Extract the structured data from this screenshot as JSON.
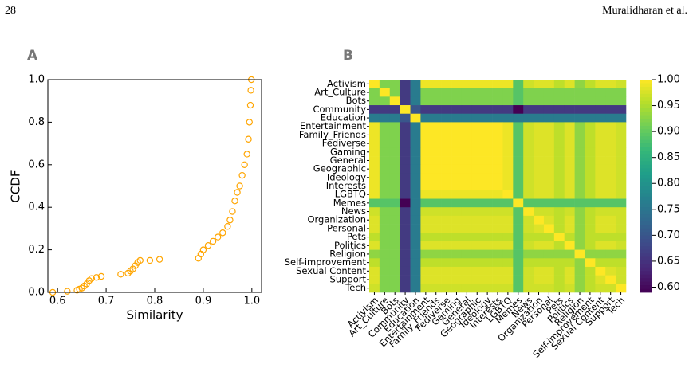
{
  "header": {
    "page": "28",
    "authors": "Muralidharan et al."
  },
  "chart_data": [
    {
      "type": "scatter",
      "panel": "A",
      "xlabel": "Similarity",
      "ylabel": "CCDF",
      "x": [
        0.59,
        0.62,
        0.64,
        0.645,
        0.65,
        0.655,
        0.66,
        0.665,
        0.67,
        0.68,
        0.69,
        0.73,
        0.745,
        0.75,
        0.755,
        0.76,
        0.765,
        0.77,
        0.79,
        0.81,
        0.89,
        0.895,
        0.9,
        0.91,
        0.92,
        0.93,
        0.94,
        0.95,
        0.955,
        0.96,
        0.965,
        0.97,
        0.975,
        0.98,
        0.985,
        0.99,
        0.993,
        0.995,
        0.997,
        0.998,
        0.999
      ],
      "series": [
        {
          "color": "#ffa500",
          "values": [
            0.0,
            0.005,
            0.01,
            0.015,
            0.02,
            0.03,
            0.04,
            0.055,
            0.065,
            0.07,
            0.075,
            0.085,
            0.09,
            0.1,
            0.11,
            0.125,
            0.14,
            0.15,
            0.15,
            0.155,
            0.16,
            0.18,
            0.2,
            0.22,
            0.24,
            0.26,
            0.28,
            0.31,
            0.34,
            0.38,
            0.43,
            0.47,
            0.5,
            0.55,
            0.6,
            0.65,
            0.72,
            0.8,
            0.88,
            0.95,
            1.0
          ]
        }
      ],
      "xlim": [
        0.58,
        1.02
      ],
      "ylim": [
        0,
        1
      ],
      "xticks": [
        0.6,
        0.7,
        0.8,
        0.9,
        {
          "value": 1,
          "label": "1.0"
        }
      ],
      "yticks": [
        {
          "value": 0,
          "label": "0.0"
        },
        0.2,
        0.4,
        0.6,
        0.8,
        {
          "value": 1,
          "label": "1.0"
        }
      ]
    },
    {
      "type": "heatmap",
      "panel": "B",
      "colormap": "viridis",
      "categories": [
        "Activism",
        "Art_Culture",
        "Bots",
        "Community",
        "Education",
        "Entertainment",
        "Family_Friends",
        "Fediverse",
        "Gaming",
        "General",
        "Geographic",
        "Ideology",
        "Interests",
        "LGBTQ",
        "Memes",
        "News",
        "Organization",
        "Personal",
        "Pets",
        "Politics",
        "Religion",
        "Self-improvement",
        "Sexual Content",
        "Support",
        "Tech"
      ],
      "values": [
        [
          1,
          0.92,
          0.92,
          0.66,
          0.76,
          0.99,
          0.99,
          0.99,
          0.99,
          0.99,
          0.99,
          0.99,
          0.99,
          0.99,
          0.89,
          0.97,
          0.98,
          0.98,
          0.96,
          0.98,
          0.93,
          0.96,
          0.98,
          0.98,
          0.97
        ],
        [
          0.92,
          1,
          0.92,
          0.66,
          0.76,
          0.92,
          0.92,
          0.92,
          0.92,
          0.92,
          0.92,
          0.92,
          0.92,
          0.92,
          0.89,
          0.92,
          0.92,
          0.92,
          0.92,
          0.92,
          0.92,
          0.92,
          0.92,
          0.92,
          0.92
        ],
        [
          0.92,
          0.92,
          1,
          0.66,
          0.76,
          0.92,
          0.92,
          0.92,
          0.92,
          0.92,
          0.92,
          0.92,
          0.92,
          0.92,
          0.89,
          0.92,
          0.92,
          0.92,
          0.92,
          0.92,
          0.92,
          0.92,
          0.92,
          0.92,
          0.92
        ],
        [
          0.66,
          0.66,
          0.66,
          1,
          0.7,
          0.66,
          0.66,
          0.66,
          0.66,
          0.66,
          0.66,
          0.66,
          0.66,
          0.66,
          0.59,
          0.66,
          0.66,
          0.66,
          0.66,
          0.66,
          0.66,
          0.66,
          0.66,
          0.66,
          0.66
        ],
        [
          0.76,
          0.76,
          0.76,
          0.7,
          1,
          0.76,
          0.76,
          0.76,
          0.76,
          0.76,
          0.76,
          0.76,
          0.76,
          0.76,
          0.76,
          0.76,
          0.76,
          0.76,
          0.76,
          0.76,
          0.76,
          0.76,
          0.76,
          0.76,
          0.76
        ],
        [
          0.99,
          0.92,
          0.92,
          0.66,
          0.76,
          1,
          1,
          1,
          1,
          1,
          1,
          1,
          1,
          0.99,
          0.89,
          0.97,
          0.98,
          0.98,
          0.96,
          0.98,
          0.93,
          0.96,
          0.98,
          0.98,
          0.97
        ],
        [
          0.99,
          0.92,
          0.92,
          0.66,
          0.76,
          1,
          1,
          1,
          1,
          1,
          1,
          1,
          1,
          0.99,
          0.89,
          0.97,
          0.98,
          0.98,
          0.96,
          0.98,
          0.93,
          0.96,
          0.98,
          0.98,
          0.97
        ],
        [
          0.99,
          0.92,
          0.92,
          0.66,
          0.76,
          1,
          1,
          1,
          1,
          1,
          1,
          1,
          1,
          0.99,
          0.89,
          0.97,
          0.98,
          0.98,
          0.96,
          0.98,
          0.93,
          0.96,
          0.98,
          0.98,
          0.97
        ],
        [
          0.99,
          0.92,
          0.92,
          0.66,
          0.76,
          1,
          1,
          1,
          1,
          1,
          1,
          1,
          1,
          0.99,
          0.89,
          0.97,
          0.98,
          0.98,
          0.96,
          0.98,
          0.93,
          0.96,
          0.98,
          0.98,
          0.97
        ],
        [
          0.99,
          0.92,
          0.92,
          0.66,
          0.76,
          1,
          1,
          1,
          1,
          1,
          1,
          1,
          1,
          0.99,
          0.89,
          0.97,
          0.98,
          0.98,
          0.96,
          0.98,
          0.93,
          0.96,
          0.98,
          0.98,
          0.97
        ],
        [
          0.99,
          0.92,
          0.92,
          0.66,
          0.76,
          1,
          1,
          1,
          1,
          1,
          1,
          1,
          1,
          0.99,
          0.89,
          0.97,
          0.98,
          0.98,
          0.96,
          0.98,
          0.93,
          0.96,
          0.98,
          0.98,
          0.97
        ],
        [
          0.99,
          0.92,
          0.92,
          0.66,
          0.76,
          1,
          1,
          1,
          1,
          1,
          1,
          1,
          1,
          0.99,
          0.89,
          0.97,
          0.98,
          0.98,
          0.96,
          0.98,
          0.93,
          0.96,
          0.98,
          0.98,
          0.97
        ],
        [
          0.99,
          0.92,
          0.92,
          0.66,
          0.76,
          1,
          1,
          1,
          1,
          1,
          1,
          1,
          1,
          0.99,
          0.89,
          0.97,
          0.98,
          0.98,
          0.96,
          0.98,
          0.93,
          0.96,
          0.98,
          0.98,
          0.97
        ],
        [
          0.99,
          0.92,
          0.92,
          0.66,
          0.76,
          0.99,
          0.99,
          0.99,
          0.99,
          0.99,
          0.99,
          0.99,
          0.99,
          1,
          0.89,
          0.97,
          0.98,
          0.98,
          0.96,
          0.98,
          0.93,
          0.96,
          0.98,
          0.98,
          0.97
        ],
        [
          0.89,
          0.89,
          0.89,
          0.59,
          0.76,
          0.89,
          0.89,
          0.89,
          0.89,
          0.89,
          0.89,
          0.89,
          0.89,
          0.89,
          1,
          0.89,
          0.89,
          0.89,
          0.89,
          0.89,
          0.89,
          0.89,
          0.89,
          0.89,
          0.89
        ],
        [
          0.97,
          0.92,
          0.92,
          0.66,
          0.76,
          0.97,
          0.97,
          0.97,
          0.97,
          0.97,
          0.97,
          0.97,
          0.97,
          0.97,
          0.89,
          1,
          0.97,
          0.97,
          0.96,
          0.97,
          0.93,
          0.96,
          0.97,
          0.97,
          0.97
        ],
        [
          0.98,
          0.92,
          0.92,
          0.66,
          0.76,
          0.98,
          0.98,
          0.98,
          0.98,
          0.98,
          0.98,
          0.98,
          0.98,
          0.98,
          0.89,
          0.97,
          1,
          0.98,
          0.96,
          0.98,
          0.93,
          0.96,
          0.98,
          0.98,
          0.97
        ],
        [
          0.98,
          0.92,
          0.92,
          0.66,
          0.76,
          0.98,
          0.98,
          0.98,
          0.98,
          0.98,
          0.98,
          0.98,
          0.98,
          0.98,
          0.89,
          0.97,
          0.98,
          1,
          0.96,
          0.98,
          0.93,
          0.96,
          0.98,
          0.98,
          0.97
        ],
        [
          0.96,
          0.92,
          0.92,
          0.66,
          0.76,
          0.96,
          0.96,
          0.96,
          0.96,
          0.96,
          0.96,
          0.96,
          0.96,
          0.96,
          0.89,
          0.96,
          0.96,
          0.96,
          1,
          0.96,
          0.93,
          0.96,
          0.96,
          0.96,
          0.96
        ],
        [
          0.98,
          0.92,
          0.92,
          0.66,
          0.76,
          0.98,
          0.98,
          0.98,
          0.98,
          0.98,
          0.98,
          0.98,
          0.98,
          0.98,
          0.89,
          0.97,
          0.98,
          0.98,
          0.96,
          1,
          0.93,
          0.96,
          0.98,
          0.98,
          0.97
        ],
        [
          0.93,
          0.92,
          0.92,
          0.66,
          0.76,
          0.93,
          0.93,
          0.93,
          0.93,
          0.93,
          0.93,
          0.93,
          0.93,
          0.93,
          0.89,
          0.93,
          0.93,
          0.93,
          0.93,
          0.93,
          1,
          0.93,
          0.93,
          0.93,
          0.93
        ],
        [
          0.96,
          0.92,
          0.92,
          0.66,
          0.76,
          0.96,
          0.96,
          0.96,
          0.96,
          0.96,
          0.96,
          0.96,
          0.96,
          0.96,
          0.89,
          0.96,
          0.96,
          0.96,
          0.96,
          0.96,
          0.93,
          1,
          0.96,
          0.96,
          0.96
        ],
        [
          0.98,
          0.92,
          0.92,
          0.66,
          0.76,
          0.98,
          0.98,
          0.98,
          0.98,
          0.98,
          0.98,
          0.98,
          0.98,
          0.98,
          0.89,
          0.97,
          0.98,
          0.98,
          0.96,
          0.98,
          0.93,
          0.96,
          1,
          0.98,
          0.97
        ],
        [
          0.98,
          0.92,
          0.92,
          0.66,
          0.76,
          0.98,
          0.98,
          0.98,
          0.98,
          0.98,
          0.98,
          0.98,
          0.98,
          0.98,
          0.89,
          0.97,
          0.98,
          0.98,
          0.96,
          0.98,
          0.93,
          0.96,
          0.98,
          1,
          0.97
        ],
        [
          0.97,
          0.92,
          0.92,
          0.66,
          0.76,
          0.97,
          0.97,
          0.97,
          0.97,
          0.97,
          0.97,
          0.97,
          0.97,
          0.97,
          0.89,
          0.97,
          0.97,
          0.97,
          0.96,
          0.97,
          0.93,
          0.96,
          0.97,
          0.97,
          1
        ]
      ],
      "zlim": [
        0.59,
        1.0
      ],
      "zticks": [
        {
          "value": 0.6,
          "label": "0.60"
        },
        {
          "value": 0.65,
          "label": "0.65"
        },
        {
          "value": 0.7,
          "label": "0.70"
        },
        {
          "value": 0.75,
          "label": "0.75"
        },
        {
          "value": 0.8,
          "label": "0.80"
        },
        {
          "value": 0.85,
          "label": "0.85"
        },
        {
          "value": 0.9,
          "label": "0.90"
        },
        {
          "value": 0.95,
          "label": "0.95"
        },
        {
          "value": 1,
          "label": "1.00"
        }
      ]
    }
  ]
}
